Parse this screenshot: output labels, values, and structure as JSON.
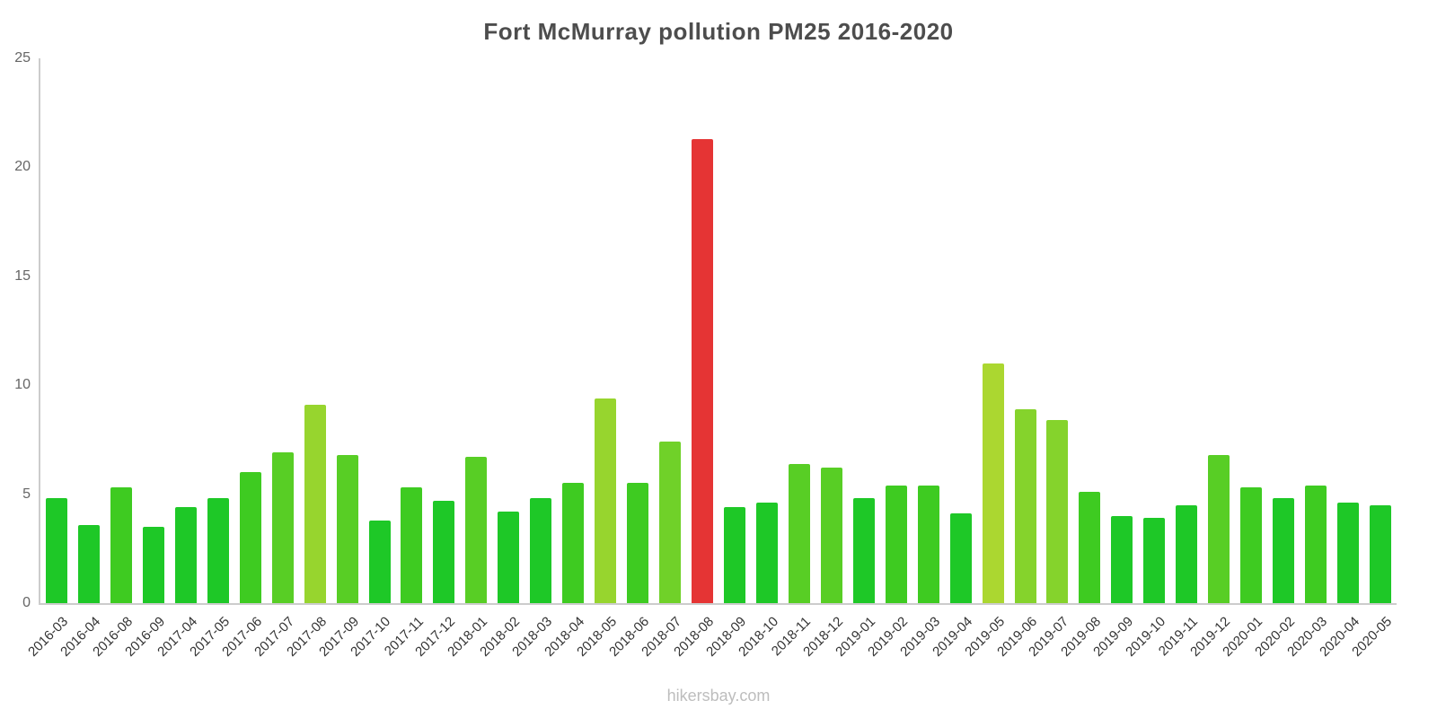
{
  "title": "Fort McMurray pollution PM25 2016-2020",
  "footer": "hikersbay.com",
  "chart_data": {
    "type": "bar",
    "title": "Fort McMurray pollution PM25 2016-2020",
    "xlabel": "",
    "ylabel": "",
    "ylim": [
      0,
      25
    ],
    "yticks": [
      0,
      5,
      10,
      15,
      20,
      25
    ],
    "grid": false,
    "legend": false,
    "categories": [
      "2016-03",
      "2016-04",
      "2016-08",
      "2016-09",
      "2017-04",
      "2017-05",
      "2017-06",
      "2017-07",
      "2017-08",
      "2017-09",
      "2017-10",
      "2017-11",
      "2017-12",
      "2018-01",
      "2018-02",
      "2018-03",
      "2018-04",
      "2018-05",
      "2018-06",
      "2018-07",
      "2018-08",
      "2018-09",
      "2018-10",
      "2018-11",
      "2018-12",
      "2019-01",
      "2019-02",
      "2019-03",
      "2019-04",
      "2019-05",
      "2019-06",
      "2019-07",
      "2019-08",
      "2019-09",
      "2019-10",
      "2019-11",
      "2019-12",
      "2020-01",
      "2020-02",
      "2020-03",
      "2020-04",
      "2020-05"
    ],
    "values": [
      4.8,
      3.6,
      5.3,
      3.5,
      4.4,
      4.8,
      6.0,
      6.9,
      9.1,
      6.8,
      3.8,
      5.3,
      4.7,
      6.7,
      4.2,
      4.8,
      5.5,
      9.4,
      5.5,
      7.4,
      21.3,
      4.4,
      4.6,
      6.4,
      6.2,
      4.8,
      5.4,
      5.4,
      4.1,
      11.0,
      8.9,
      8.4,
      5.1,
      4.0,
      3.9,
      4.5,
      6.8,
      5.3,
      4.8,
      5.4,
      4.6,
      4.5
    ],
    "highlight": {
      "category": "2018-08",
      "color": "#e53434"
    },
    "color_scale": [
      {
        "max": 5.0,
        "color": "#1ec827"
      },
      {
        "max": 6.0,
        "color": "#3ecb21"
      },
      {
        "max": 7.0,
        "color": "#58ce25"
      },
      {
        "max": 8.0,
        "color": "#70d129"
      },
      {
        "max": 9.0,
        "color": "#85d32c"
      },
      {
        "max": 10.0,
        "color": "#97d52e"
      },
      {
        "max": 999,
        "color": "#abd730"
      }
    ]
  }
}
